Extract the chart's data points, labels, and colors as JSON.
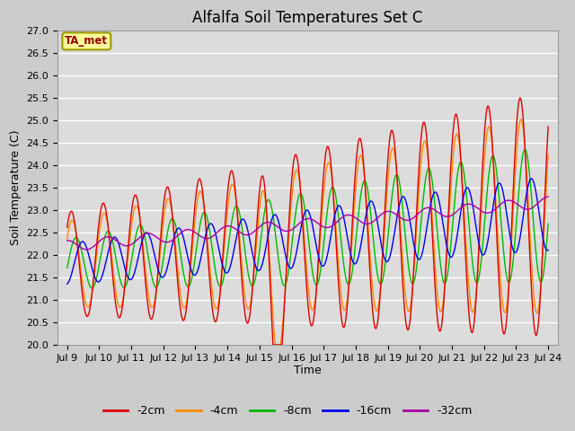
{
  "title": "Alfalfa Soil Temperatures Set C",
  "xlabel": "Time",
  "ylabel": "Soil Temperature (C)",
  "ylim": [
    20.0,
    27.0
  ],
  "yticks": [
    20.0,
    20.5,
    21.0,
    21.5,
    22.0,
    22.5,
    23.0,
    23.5,
    24.0,
    24.5,
    25.0,
    25.5,
    26.0,
    26.5,
    27.0
  ],
  "xtick_labels": [
    "Jul 9",
    "Jul 10",
    "Jul 11",
    "Jul 12",
    "Jul 13",
    "Jul 14",
    "Jul 15",
    "Jul 16",
    "Jul 17",
    "Jul 18",
    "Jul 19",
    "Jul 20",
    "Jul 21",
    "Jul 22",
    "Jul 23",
    "Jul 24"
  ],
  "series_colors": [
    "#DD0000",
    "#FF8800",
    "#00BB00",
    "#0000EE",
    "#AA00AA"
  ],
  "series_labels": [
    "-2cm",
    "-4cm",
    "-8cm",
    "-16cm",
    "-32cm"
  ],
  "ta_met_label": "TA_met",
  "ta_met_text_color": "#990000",
  "ta_met_bg_color": "#FFFF99",
  "ta_met_border_color": "#999900",
  "fig_facecolor": "#CCCCCC",
  "plot_bg_color": "#DCDCDC",
  "title_fontsize": 12,
  "axis_label_fontsize": 9,
  "tick_fontsize": 8,
  "legend_fontsize": 9
}
